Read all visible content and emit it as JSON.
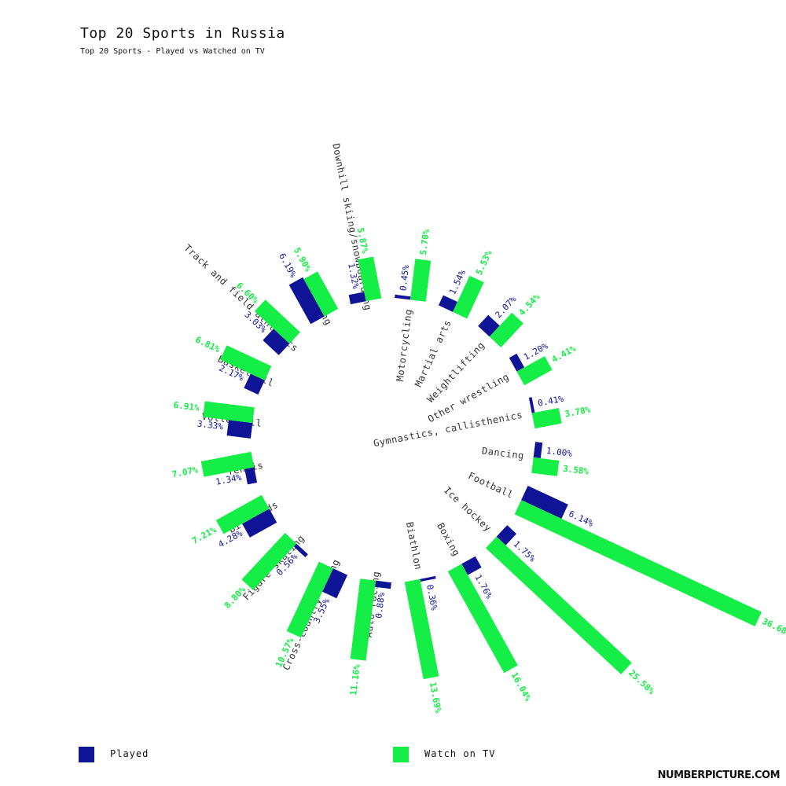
{
  "title": "Top 20 Sports in Russia",
  "subtitle": "Top 20 Sports - Played vs Watched on TV",
  "colors": {
    "played": "#0f1496",
    "watched": "#14ee46",
    "label": "#333333"
  },
  "legend": {
    "played": "Played",
    "watched": "Watch on TV"
  },
  "credit": "NUMBERPICTURE.COM",
  "chart_data": {
    "type": "bar",
    "categories": [
      "Dancing",
      "Football",
      "Ice hockey",
      "Boxing",
      "Biathlon",
      "Auto racing",
      "Cross-country skiing",
      "Figure skating",
      "Billiards",
      "Tennis",
      "Volleyball",
      "Basketball",
      "Track and field athletics",
      "Swimming",
      "Downhill skiing/snowboarding",
      "Motorcycling",
      "Martial arts",
      "Weightlifting",
      "Other wrestling",
      "Gymnastics, callisthenics"
    ],
    "series": [
      {
        "name": "Played",
        "values": [
          1.0,
          6.14,
          1.75,
          1.76,
          0.36,
          0.88,
          3.55,
          0.56,
          4.28,
          1.34,
          3.33,
          2.17,
          3.03,
          6.19,
          1.32,
          0.45,
          1.54,
          2.07,
          1.2,
          0.41
        ]
      },
      {
        "name": "Watch on TV",
        "values": [
          3.58,
          36.68,
          25.58,
          16.04,
          13.69,
          11.16,
          10.57,
          8.8,
          7.21,
          7.07,
          6.91,
          6.81,
          6.6,
          5.9,
          5.87,
          5.7,
          5.53,
          4.54,
          4.41,
          3.78
        ]
      }
    ],
    "value_labels": {
      "played": [
        "1.00%",
        "6.14%",
        "1.75%",
        "1.76%",
        "0.36%",
        "0.88%",
        "3.55%",
        "0.56%",
        "4.28%",
        "1.34%",
        "3.33%",
        "2.17%",
        "3.03%",
        "6.19%",
        "1.32%",
        "0.45%",
        "1.54%",
        "2.07%",
        "1.20%",
        "0.41%"
      ],
      "watched": [
        "3.58%",
        "36.68%",
        "25.58%",
        "16.04%",
        "13.69%",
        "11.16%",
        "10.57%",
        "8.80%",
        "7.21%",
        "7.07%",
        "6.91%",
        "6.81%",
        "6.60%",
        "5.90%",
        "5.87%",
        "5.70%",
        "5.53%",
        "4.54%",
        "4.41%",
        "3.78%"
      ]
    },
    "layout": "radial"
  }
}
